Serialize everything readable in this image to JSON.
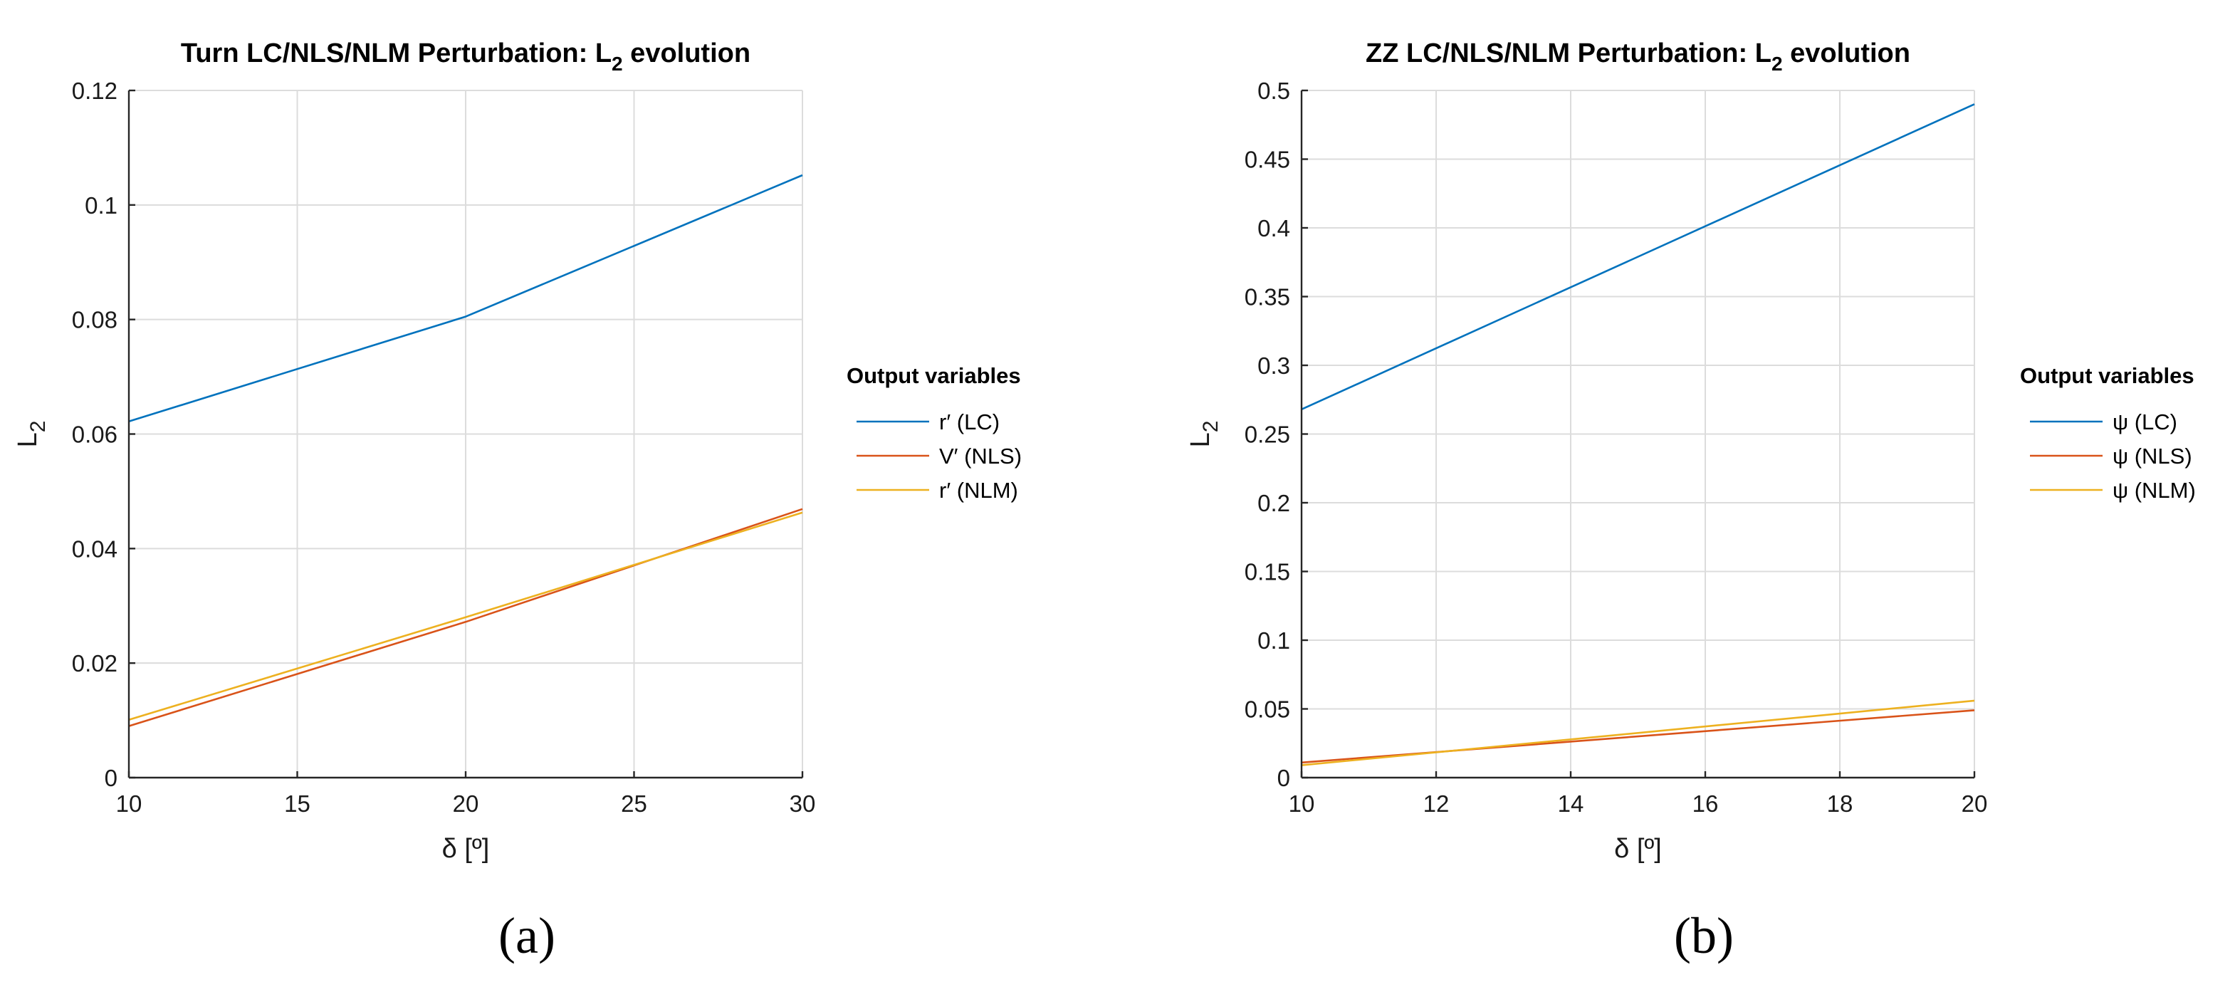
{
  "chart_data": [
    {
      "type": "line",
      "panel_label": "(a)",
      "title": "Turn LC/NLS/NLM Perturbation: L",
      "title_sub": "2",
      "title_suffix": " evolution",
      "xlabel": "δ [º]",
      "ylabel": "L",
      "ylabel_sub": "2",
      "xlim": [
        10,
        30
      ],
      "ylim": [
        0,
        0.12
      ],
      "xticks": [
        10,
        15,
        20,
        25,
        30
      ],
      "xtick_labels": [
        "10",
        "15",
        "20",
        "25",
        "30"
      ],
      "yticks": [
        0,
        0.02,
        0.04,
        0.06,
        0.08,
        0.1,
        0.12
      ],
      "ytick_labels": [
        "0",
        "0.02",
        "0.04",
        "0.06",
        "0.08",
        "0.1",
        "0.12"
      ],
      "grid": true,
      "legend": {
        "title": "Output variables",
        "placement": "outside-right",
        "entries": [
          "r′ (LC)",
          "V′ (NLS)",
          "r′ (NLM)"
        ]
      },
      "series": [
        {
          "name": "r′ (LC)",
          "color": "#0072BD",
          "x": [
            10,
            20,
            30
          ],
          "y": [
            0.0622,
            0.0805,
            0.1052
          ]
        },
        {
          "name": "V′ (NLS)",
          "color": "#D95319",
          "x": [
            10,
            20,
            30
          ],
          "y": [
            0.009,
            0.0272,
            0.0469
          ]
        },
        {
          "name": "r′ (NLM)",
          "color": "#EDB120",
          "x": [
            10,
            20,
            30
          ],
          "y": [
            0.0101,
            0.028,
            0.0463
          ]
        }
      ]
    },
    {
      "type": "line",
      "panel_label": "(b)",
      "title": "ZZ LC/NLS/NLM Perturbation: L",
      "title_sub": "2",
      "title_suffix": " evolution",
      "xlabel": "δ [º]",
      "ylabel": "L",
      "ylabel_sub": "2",
      "xlim": [
        10,
        20
      ],
      "ylim": [
        0,
        0.5
      ],
      "xticks": [
        10,
        12,
        14,
        16,
        18,
        20
      ],
      "xtick_labels": [
        "10",
        "12",
        "14",
        "16",
        "18",
        "20"
      ],
      "yticks": [
        0,
        0.05,
        0.1,
        0.15,
        0.2,
        0.25,
        0.3,
        0.35,
        0.4,
        0.45,
        0.5
      ],
      "ytick_labels": [
        "0",
        "0.05",
        "0.1",
        "0.15",
        "0.2",
        "0.25",
        "0.3",
        "0.35",
        "0.4",
        "0.45",
        "0.5"
      ],
      "grid": true,
      "legend": {
        "title": "Output variables",
        "placement": "outside-right",
        "entries": [
          "ψ (LC)",
          "ψ (NLS)",
          "ψ (NLM)"
        ]
      },
      "series": [
        {
          "name": "ψ (LC)",
          "color": "#0072BD",
          "x": [
            10,
            20
          ],
          "y": [
            0.268,
            0.49
          ]
        },
        {
          "name": "ψ (NLS)",
          "color": "#D95319",
          "x": [
            10,
            20
          ],
          "y": [
            0.011,
            0.049
          ]
        },
        {
          "name": "ψ (NLM)",
          "color": "#EDB120",
          "x": [
            10,
            20
          ],
          "y": [
            0.009,
            0.056
          ]
        }
      ]
    }
  ]
}
